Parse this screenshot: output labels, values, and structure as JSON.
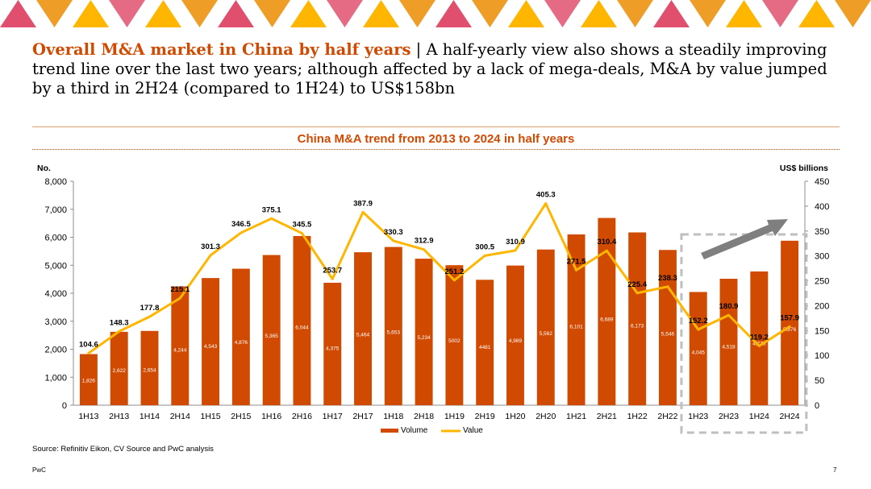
{
  "slide": {
    "title_lead": "Overall M&A market in China by half years",
    "title_separator": " | ",
    "title_rest": "A half-yearly view also shows a steadily improving trend line over the last two years; although affected by a lack of mega-deals, M&A by value jumped by a third in 2H24 (compared to 1H24) to US$158bn",
    "source": "Source: Refinitiv Eikon, CV Source and PwC analysis",
    "footer_brand": "PwC",
    "page_number": "7"
  },
  "colors": {
    "bar": "#d04a02",
    "line": "#ffb600",
    "accent": "#d04a02",
    "arrow": "#7f7f7f",
    "highlight_box": "#bfbfbf",
    "deco_pink": "#e0506e",
    "deco_orange": "#eb8c00",
    "deco_yellow": "#ffb600"
  },
  "chart_data": {
    "type": "bar",
    "title": "China M&A trend from 2013 to 2024 in half years",
    "categories": [
      "1H13",
      "2H13",
      "1H14",
      "2H14",
      "1H15",
      "2H15",
      "1H16",
      "2H16",
      "1H17",
      "2H17",
      "1H18",
      "2H18",
      "1H19",
      "2H19",
      "1H20",
      "2H20",
      "1H21",
      "2H21",
      "1H22",
      "2H22",
      "1H23",
      "2H23",
      "1H24",
      "2H24"
    ],
    "series": [
      {
        "name": "Volume",
        "type": "bar",
        "axis": "left",
        "values": [
          1826,
          2622,
          2654,
          4244,
          4543,
          4876,
          5365,
          6044,
          4375,
          5464,
          5653,
          5234,
          5002,
          4481,
          4989,
          5562,
          6101,
          6689,
          6173,
          5546,
          4045,
          4518,
          4778,
          5876
        ],
        "labels": [
          "1,826",
          "2,622",
          "2,654",
          "4,244",
          "4,543",
          "4,876",
          "5,365",
          "6,044",
          "4,375",
          "5,464",
          "5,653",
          "5,234",
          "5002",
          "4481",
          "4,989",
          "5,562",
          "6,101",
          "6,689",
          "6,173",
          "5,546",
          "4,045",
          "4,518",
          "4,778",
          "5,876"
        ]
      },
      {
        "name": "Value",
        "type": "line",
        "axis": "right",
        "values": [
          104.6,
          148.3,
          177.8,
          215.1,
          301.3,
          346.5,
          375.1,
          345.5,
          253.7,
          387.9,
          330.3,
          312.9,
          251.2,
          300.5,
          310.9,
          405.3,
          271.5,
          310.4,
          225.4,
          238.3,
          152.2,
          180.9,
          119.2,
          157.9
        ],
        "labels": [
          "104.6",
          "148.3",
          "177.8",
          "215.1",
          "301.3",
          "346.5",
          "375.1",
          "345.5",
          "253.7",
          "387.9",
          "330.3",
          "312.9",
          "251.2",
          "300.5",
          "310.9",
          "405.3",
          "271.5",
          "310.4",
          "225.4",
          "238.3",
          "152.2",
          "180.9",
          "119.2",
          "157.9"
        ]
      }
    ],
    "y_left": {
      "label": "No.",
      "range": [
        0,
        8000
      ],
      "ticks": [
        "0",
        "1,000",
        "2,000",
        "3,000",
        "4,000",
        "5,000",
        "6,000",
        "7,000",
        "8,000"
      ]
    },
    "y_right": {
      "label": "US$ billions",
      "range": [
        0,
        450
      ],
      "ticks": [
        "0",
        "50",
        "100",
        "150",
        "200",
        "250",
        "300",
        "350",
        "400",
        "450"
      ]
    },
    "grid": false,
    "legend_position": "bottom",
    "highlight": {
      "from": "1H23",
      "to": "2H24",
      "style": "dashed box",
      "arrow": "up-right"
    }
  }
}
